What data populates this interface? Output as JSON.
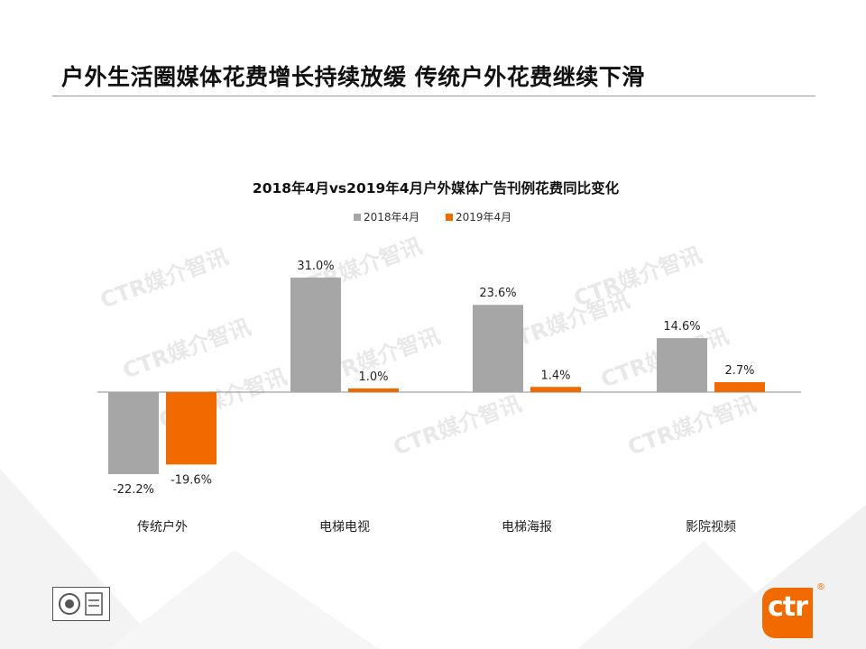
{
  "page": {
    "title": "户外生活圈媒体花费增长持续放缓 传统户外花费继续下滑",
    "logo_text": "ctr",
    "logo_mark": "®",
    "watermark_text": "CTR媒介智讯"
  },
  "colors": {
    "series_2018": "#a6a6a6",
    "series_2019": "#f06a00",
    "logo": "#f06a00"
  },
  "chart_data": {
    "type": "bar",
    "title": "2018年4月vs2019年4月户外媒体广告刊例花费同比变化",
    "categories": [
      "传统户外",
      "电梯电视",
      "电梯海报",
      "影院视频"
    ],
    "series": [
      {
        "name": "2018年4月",
        "values": [
          -22.2,
          31.0,
          23.6,
          14.6
        ],
        "labels": [
          "-22.2%",
          "31.0%",
          "23.6%",
          "14.6%"
        ]
      },
      {
        "name": "2019年4月",
        "values": [
          -19.6,
          1.0,
          1.4,
          2.7
        ],
        "labels": [
          "-19.6%",
          "1.0%",
          "1.4%",
          "2.7%"
        ]
      }
    ],
    "legend_position": "top",
    "grid": false,
    "unit": "%"
  }
}
